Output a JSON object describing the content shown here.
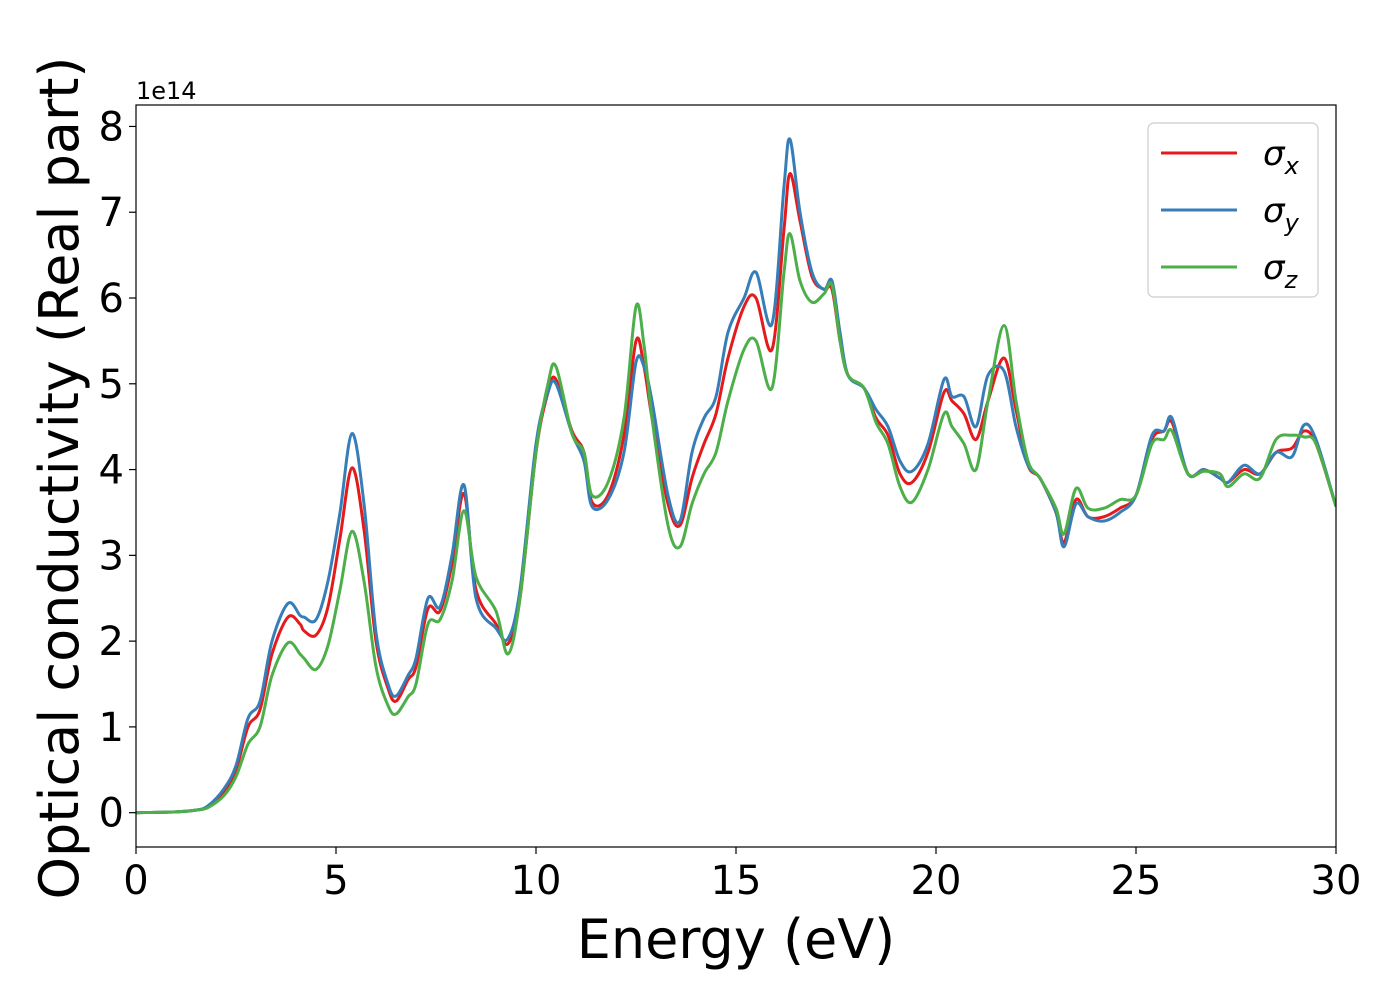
{
  "chart_data": {
    "type": "line",
    "xlabel": "Energy (eV)",
    "ylabel": "Optical conductivity (Real part)",
    "y_offset_label": "1e14",
    "xlim": [
      0,
      30
    ],
    "ylim": [
      -0.4,
      8.25
    ],
    "xticks": [
      0,
      5,
      10,
      15,
      20,
      25,
      30
    ],
    "yticks": [
      0,
      1,
      2,
      3,
      4,
      5,
      6,
      7,
      8
    ],
    "grid": false,
    "legend_position": "top-right",
    "series": [
      {
        "name": "σx",
        "symbol": "σ",
        "sub": "x",
        "color": "#e41a1c",
        "points": [
          [
            0,
            0
          ],
          [
            1,
            0.01
          ],
          [
            1.5,
            0.03
          ],
          [
            1.8,
            0.07
          ],
          [
            2.2,
            0.25
          ],
          [
            2.5,
            0.5
          ],
          [
            2.8,
            1.0
          ],
          [
            3.1,
            1.2
          ],
          [
            3.4,
            1.85
          ],
          [
            3.8,
            2.28
          ],
          [
            4.1,
            2.2
          ],
          [
            4.2,
            2.12
          ],
          [
            4.5,
            2.07
          ],
          [
            4.8,
            2.4
          ],
          [
            5.1,
            3.2
          ],
          [
            5.4,
            4.02
          ],
          [
            5.7,
            3.3
          ],
          [
            6.0,
            2.0
          ],
          [
            6.3,
            1.45
          ],
          [
            6.5,
            1.3
          ],
          [
            6.8,
            1.55
          ],
          [
            7.0,
            1.7
          ],
          [
            7.3,
            2.38
          ],
          [
            7.6,
            2.35
          ],
          [
            7.9,
            2.9
          ],
          [
            8.2,
            3.72
          ],
          [
            8.5,
            2.6
          ],
          [
            9.0,
            2.2
          ],
          [
            9.3,
            1.97
          ],
          [
            9.6,
            2.5
          ],
          [
            10.0,
            4.2
          ],
          [
            10.3,
            4.9
          ],
          [
            10.5,
            5.05
          ],
          [
            10.9,
            4.45
          ],
          [
            11.2,
            4.2
          ],
          [
            11.4,
            3.62
          ],
          [
            11.8,
            3.7
          ],
          [
            12.2,
            4.4
          ],
          [
            12.5,
            5.5
          ],
          [
            12.7,
            5.2
          ],
          [
            12.9,
            4.6
          ],
          [
            13.3,
            3.6
          ],
          [
            13.6,
            3.35
          ],
          [
            13.9,
            3.9
          ],
          [
            14.2,
            4.3
          ],
          [
            14.5,
            4.65
          ],
          [
            14.8,
            5.3
          ],
          [
            15.2,
            5.9
          ],
          [
            15.5,
            6.0
          ],
          [
            15.9,
            5.4
          ],
          [
            16.2,
            6.8
          ],
          [
            16.35,
            7.45
          ],
          [
            16.6,
            6.9
          ],
          [
            16.9,
            6.25
          ],
          [
            17.2,
            6.1
          ],
          [
            17.4,
            6.1
          ],
          [
            17.6,
            5.5
          ],
          [
            17.8,
            5.1
          ],
          [
            18.2,
            4.95
          ],
          [
            18.5,
            4.6
          ],
          [
            18.8,
            4.4
          ],
          [
            19.1,
            3.95
          ],
          [
            19.4,
            3.85
          ],
          [
            19.8,
            4.2
          ],
          [
            20.2,
            4.9
          ],
          [
            20.4,
            4.8
          ],
          [
            20.7,
            4.65
          ],
          [
            21.0,
            4.35
          ],
          [
            21.3,
            4.8
          ],
          [
            21.7,
            5.3
          ],
          [
            22.0,
            4.7
          ],
          [
            22.3,
            4.05
          ],
          [
            22.6,
            3.9
          ],
          [
            23.0,
            3.5
          ],
          [
            23.2,
            3.15
          ],
          [
            23.5,
            3.65
          ],
          [
            23.8,
            3.45
          ],
          [
            24.2,
            3.45
          ],
          [
            24.6,
            3.55
          ],
          [
            25.0,
            3.7
          ],
          [
            25.4,
            4.35
          ],
          [
            25.7,
            4.45
          ],
          [
            25.9,
            4.55
          ],
          [
            26.3,
            3.95
          ],
          [
            26.7,
            4.0
          ],
          [
            27.1,
            3.9
          ],
          [
            27.3,
            3.85
          ],
          [
            27.7,
            4.0
          ],
          [
            28.1,
            3.95
          ],
          [
            28.5,
            4.2
          ],
          [
            28.9,
            4.25
          ],
          [
            29.2,
            4.45
          ],
          [
            29.5,
            4.3
          ],
          [
            30.0,
            3.57
          ]
        ]
      },
      {
        "name": "σy",
        "symbol": "σ",
        "sub": "y",
        "color": "#377eb8",
        "points": [
          [
            0,
            0
          ],
          [
            1,
            0.01
          ],
          [
            1.5,
            0.03
          ],
          [
            1.8,
            0.08
          ],
          [
            2.2,
            0.28
          ],
          [
            2.5,
            0.55
          ],
          [
            2.8,
            1.1
          ],
          [
            3.1,
            1.3
          ],
          [
            3.4,
            2.0
          ],
          [
            3.8,
            2.44
          ],
          [
            4.1,
            2.3
          ],
          [
            4.2,
            2.28
          ],
          [
            4.5,
            2.25
          ],
          [
            4.8,
            2.7
          ],
          [
            5.1,
            3.5
          ],
          [
            5.4,
            4.42
          ],
          [
            5.7,
            3.6
          ],
          [
            6.0,
            2.1
          ],
          [
            6.3,
            1.5
          ],
          [
            6.5,
            1.36
          ],
          [
            6.8,
            1.6
          ],
          [
            7.0,
            1.8
          ],
          [
            7.3,
            2.5
          ],
          [
            7.6,
            2.4
          ],
          [
            7.9,
            3.0
          ],
          [
            8.2,
            3.82
          ],
          [
            8.5,
            2.5
          ],
          [
            9.0,
            2.15
          ],
          [
            9.3,
            2.03
          ],
          [
            9.6,
            2.6
          ],
          [
            10.0,
            4.3
          ],
          [
            10.3,
            4.9
          ],
          [
            10.5,
            5.0
          ],
          [
            10.9,
            4.42
          ],
          [
            11.2,
            4.1
          ],
          [
            11.4,
            3.57
          ],
          [
            11.8,
            3.65
          ],
          [
            12.2,
            4.2
          ],
          [
            12.5,
            5.25
          ],
          [
            12.7,
            5.2
          ],
          [
            12.9,
            4.8
          ],
          [
            13.3,
            3.7
          ],
          [
            13.6,
            3.4
          ],
          [
            13.9,
            4.2
          ],
          [
            14.2,
            4.6
          ],
          [
            14.5,
            4.85
          ],
          [
            14.8,
            5.6
          ],
          [
            15.2,
            6.0
          ],
          [
            15.5,
            6.3
          ],
          [
            15.9,
            5.7
          ],
          [
            16.2,
            7.3
          ],
          [
            16.35,
            7.85
          ],
          [
            16.6,
            7.0
          ],
          [
            16.9,
            6.3
          ],
          [
            17.2,
            6.1
          ],
          [
            17.4,
            6.2
          ],
          [
            17.6,
            5.6
          ],
          [
            17.8,
            5.1
          ],
          [
            18.2,
            4.95
          ],
          [
            18.5,
            4.7
          ],
          [
            18.8,
            4.5
          ],
          [
            19.1,
            4.1
          ],
          [
            19.4,
            3.98
          ],
          [
            19.8,
            4.3
          ],
          [
            20.2,
            5.05
          ],
          [
            20.4,
            4.85
          ],
          [
            20.7,
            4.85
          ],
          [
            21.0,
            4.5
          ],
          [
            21.3,
            5.1
          ],
          [
            21.7,
            5.15
          ],
          [
            22.0,
            4.5
          ],
          [
            22.3,
            4.05
          ],
          [
            22.6,
            3.9
          ],
          [
            23.0,
            3.5
          ],
          [
            23.2,
            3.1
          ],
          [
            23.5,
            3.6
          ],
          [
            23.8,
            3.45
          ],
          [
            24.2,
            3.4
          ],
          [
            24.6,
            3.5
          ],
          [
            25.0,
            3.7
          ],
          [
            25.4,
            4.4
          ],
          [
            25.7,
            4.45
          ],
          [
            25.9,
            4.6
          ],
          [
            26.3,
            3.95
          ],
          [
            26.7,
            4.0
          ],
          [
            27.1,
            3.9
          ],
          [
            27.3,
            3.85
          ],
          [
            27.7,
            4.05
          ],
          [
            28.1,
            3.95
          ],
          [
            28.5,
            4.2
          ],
          [
            28.9,
            4.15
          ],
          [
            29.2,
            4.52
          ],
          [
            29.5,
            4.35
          ],
          [
            30.0,
            3.57
          ]
        ]
      },
      {
        "name": "σz",
        "symbol": "σ",
        "sub": "z",
        "color": "#4daf4a",
        "points": [
          [
            0,
            0
          ],
          [
            1,
            0.01
          ],
          [
            1.5,
            0.03
          ],
          [
            1.8,
            0.06
          ],
          [
            2.2,
            0.2
          ],
          [
            2.5,
            0.42
          ],
          [
            2.8,
            0.8
          ],
          [
            3.1,
            1.0
          ],
          [
            3.4,
            1.6
          ],
          [
            3.8,
            1.98
          ],
          [
            4.1,
            1.85
          ],
          [
            4.2,
            1.8
          ],
          [
            4.5,
            1.67
          ],
          [
            4.8,
            1.95
          ],
          [
            5.1,
            2.6
          ],
          [
            5.4,
            3.28
          ],
          [
            5.7,
            2.7
          ],
          [
            6.0,
            1.7
          ],
          [
            6.3,
            1.25
          ],
          [
            6.5,
            1.15
          ],
          [
            6.8,
            1.35
          ],
          [
            7.0,
            1.5
          ],
          [
            7.3,
            2.2
          ],
          [
            7.6,
            2.25
          ],
          [
            7.9,
            2.7
          ],
          [
            8.2,
            3.52
          ],
          [
            8.5,
            2.75
          ],
          [
            9.0,
            2.35
          ],
          [
            9.3,
            1.85
          ],
          [
            9.6,
            2.5
          ],
          [
            10.0,
            4.2
          ],
          [
            10.3,
            5.0
          ],
          [
            10.5,
            5.2
          ],
          [
            10.9,
            4.42
          ],
          [
            11.2,
            4.2
          ],
          [
            11.4,
            3.7
          ],
          [
            11.8,
            3.85
          ],
          [
            12.2,
            4.6
          ],
          [
            12.5,
            5.9
          ],
          [
            12.7,
            5.45
          ],
          [
            12.9,
            4.6
          ],
          [
            13.3,
            3.35
          ],
          [
            13.6,
            3.1
          ],
          [
            13.9,
            3.6
          ],
          [
            14.2,
            3.95
          ],
          [
            14.5,
            4.2
          ],
          [
            14.8,
            4.8
          ],
          [
            15.2,
            5.4
          ],
          [
            15.5,
            5.5
          ],
          [
            15.9,
            4.95
          ],
          [
            16.2,
            6.3
          ],
          [
            16.35,
            6.75
          ],
          [
            16.6,
            6.2
          ],
          [
            16.9,
            5.95
          ],
          [
            17.2,
            6.05
          ],
          [
            17.4,
            6.15
          ],
          [
            17.6,
            5.5
          ],
          [
            17.8,
            5.1
          ],
          [
            18.2,
            4.95
          ],
          [
            18.5,
            4.55
          ],
          [
            18.8,
            4.3
          ],
          [
            19.1,
            3.8
          ],
          [
            19.4,
            3.62
          ],
          [
            19.8,
            4.0
          ],
          [
            20.2,
            4.65
          ],
          [
            20.4,
            4.5
          ],
          [
            20.7,
            4.3
          ],
          [
            21.0,
            4.0
          ],
          [
            21.3,
            4.8
          ],
          [
            21.7,
            5.68
          ],
          [
            22.0,
            4.8
          ],
          [
            22.3,
            4.1
          ],
          [
            22.6,
            3.9
          ],
          [
            23.0,
            3.55
          ],
          [
            23.2,
            3.25
          ],
          [
            23.5,
            3.78
          ],
          [
            23.8,
            3.55
          ],
          [
            24.2,
            3.55
          ],
          [
            24.6,
            3.65
          ],
          [
            25.0,
            3.7
          ],
          [
            25.4,
            4.3
          ],
          [
            25.7,
            4.35
          ],
          [
            25.9,
            4.45
          ],
          [
            26.3,
            3.95
          ],
          [
            26.7,
            3.98
          ],
          [
            27.1,
            3.95
          ],
          [
            27.3,
            3.8
          ],
          [
            27.7,
            3.95
          ],
          [
            28.1,
            3.9
          ],
          [
            28.5,
            4.35
          ],
          [
            28.9,
            4.4
          ],
          [
            29.2,
            4.38
          ],
          [
            29.5,
            4.3
          ],
          [
            30.0,
            3.57
          ]
        ]
      }
    ]
  }
}
